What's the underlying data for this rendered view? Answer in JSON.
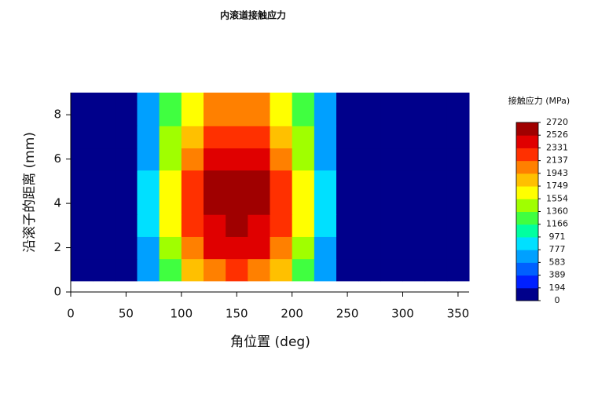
{
  "chart_data": {
    "type": "contour",
    "title": "内滚道接触应力",
    "x_label": "角位置 (deg)",
    "y_label": "沿滚子的距离 (mm)",
    "colorbar_title": "接触应力 (MPa)",
    "xlim": [
      0,
      360
    ],
    "xticks": [
      0,
      50,
      100,
      150,
      200,
      250,
      300,
      350
    ],
    "ylim": [
      0,
      9
    ],
    "yticks": [
      0,
      2,
      4,
      6,
      8
    ],
    "x_edges": [
      0,
      20,
      40,
      60,
      80,
      100,
      120,
      140,
      160,
      180,
      200,
      220,
      240,
      260,
      280,
      300,
      320,
      340,
      360
    ],
    "y_edges": [
      0.5,
      1.5,
      2.5,
      3.5,
      4.5,
      5.5,
      6.5,
      7.5,
      8.5,
      9
    ],
    "z": [
      [
        80,
        80,
        120,
        648,
        1296,
        1771,
        2074,
        2160,
        2074,
        1771,
        1296,
        648,
        120,
        80,
        80,
        80,
        80,
        80
      ],
      [
        80,
        80,
        120,
        745,
        1490,
        2037,
        2385,
        2484,
        2385,
        2037,
        1490,
        745,
        120,
        80,
        80,
        80,
        80,
        80
      ],
      [
        80,
        80,
        120,
        786,
        1571,
        2148,
        2514,
        2619,
        2514,
        2148,
        1571,
        786,
        120,
        80,
        80,
        80,
        80,
        80
      ],
      [
        80,
        80,
        120,
        810,
        1620,
        2214,
        2592,
        2700,
        2592,
        2214,
        1620,
        810,
        120,
        80,
        80,
        80,
        80,
        80
      ],
      [
        80,
        80,
        120,
        794,
        1588,
        2170,
        2540,
        2646,
        2540,
        2170,
        1588,
        794,
        120,
        80,
        80,
        80,
        80,
        80
      ],
      [
        80,
        80,
        120,
        753,
        1507,
        2059,
        2411,
        2511,
        2411,
        2059,
        1507,
        753,
        120,
        80,
        80,
        80,
        80,
        80
      ],
      [
        80,
        80,
        120,
        689,
        1377,
        1882,
        2203,
        2295,
        2203,
        1882,
        1377,
        689,
        120,
        80,
        80,
        80,
        80,
        80
      ],
      [
        80,
        80,
        120,
        608,
        1215,
        1661,
        1944,
        2025,
        1944,
        1661,
        1215,
        608,
        120,
        80,
        80,
        80,
        80,
        80
      ],
      [
        80,
        80,
        120,
        608,
        1215,
        1661,
        1944,
        2025,
        1944,
        1661,
        1215,
        608,
        120,
        80,
        80,
        80,
        80,
        80
      ]
    ],
    "levels": [
      0,
      194,
      389,
      583,
      777,
      971,
      1166,
      1360,
      1554,
      1749,
      1943,
      2137,
      2331,
      2526,
      2720
    ],
    "colors": [
      "#00008b",
      "#0020ff",
      "#0060ff",
      "#00a0ff",
      "#00e0ff",
      "#00ffa0",
      "#40ff40",
      "#a0ff00",
      "#ffff00",
      "#ffc000",
      "#ff8000",
      "#ff3000",
      "#e00000",
      "#a00000"
    ]
  }
}
